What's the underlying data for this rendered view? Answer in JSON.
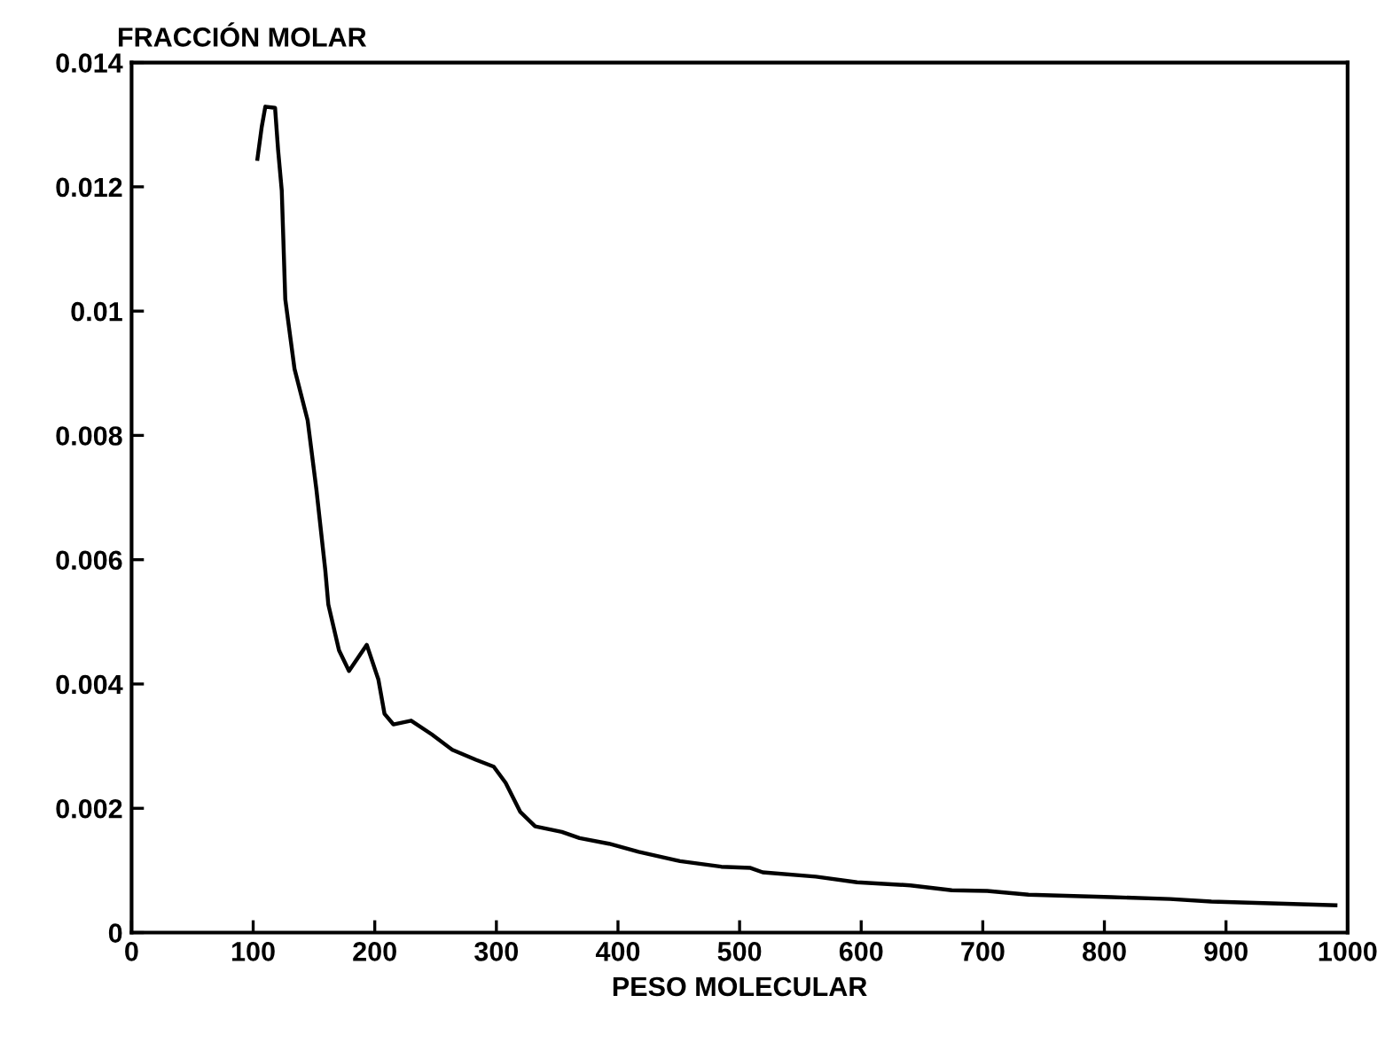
{
  "chart_data": {
    "type": "line",
    "xlabel": "PESO MOLECULAR",
    "ylabel": "FRACCIÓN MOLAR",
    "xlim": [
      0,
      1000
    ],
    "xticks": [
      0,
      100,
      200,
      300,
      400,
      500,
      600,
      700,
      800,
      900,
      1000
    ],
    "ylim": [
      0,
      0.014
    ],
    "yticks": [
      0,
      0.002,
      0.004,
      0.006,
      0.008,
      0.01,
      0.012,
      0.014
    ],
    "grid": false,
    "marker": "none",
    "line_style": "solid",
    "series": [
      {
        "color": "#000000",
        "x": [
          103.5,
          107,
          110,
          118,
          120.5,
          123.5,
          126.4,
          134,
          144.8,
          152,
          159.3,
          161.8,
          170.6,
          178.8,
          193.4,
          203,
          208,
          215.3,
          229.9,
          246.8,
          263.8,
          283.2,
          297.8,
          307.6,
          319.7,
          331.9,
          353.8,
          368.4,
          392.6,
          417,
          451,
          485,
          509,
          519,
          562.7,
          596.6,
          640.4,
          674.5,
          703.6,
          737.6,
          805.7,
          854,
          888,
          990
        ],
        "values": [
          0.01245,
          0.01296,
          0.01329,
          0.01327,
          0.01259,
          0.01194,
          0.01019,
          0.00907,
          0.00824,
          0.00713,
          0.00583,
          0.00528,
          0.00454,
          0.00421,
          0.00463,
          0.00407,
          0.00352,
          0.00335,
          0.00341,
          0.00319,
          0.00294,
          0.00278,
          0.00267,
          0.00241,
          0.00194,
          0.00171,
          0.00162,
          0.00152,
          0.00143,
          0.0013,
          0.00115,
          0.00106,
          0.00104,
          0.00097,
          0.0009,
          0.00081,
          0.00076,
          0.00068,
          0.00067,
          0.00061,
          0.00057,
          0.00054,
          0.0005,
          0.00044
        ]
      }
    ]
  }
}
